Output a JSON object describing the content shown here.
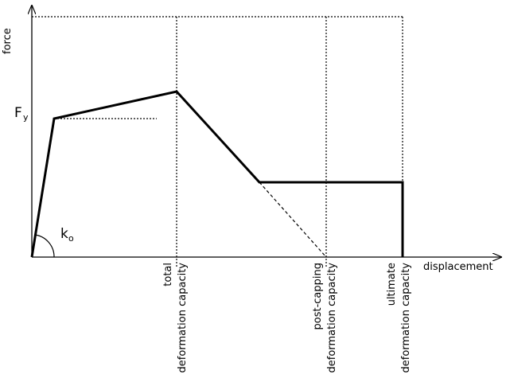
{
  "axes": {
    "y_label": "force",
    "x_label": "displacement"
  },
  "symbols": {
    "yield_force": {
      "main": "F",
      "sub": "y"
    },
    "initial_stiffness": {
      "main": "k",
      "sub": "o"
    }
  },
  "capacities": [
    {
      "line1": "total",
      "line2": "deformation capacity"
    },
    {
      "line1": "post-capping",
      "line2": "deformation  capacity"
    },
    {
      "line1": "ultimate",
      "line2": "deformation  capacity"
    }
  ],
  "colors": {
    "ink": "#000000",
    "background": "#ffffff"
  }
}
